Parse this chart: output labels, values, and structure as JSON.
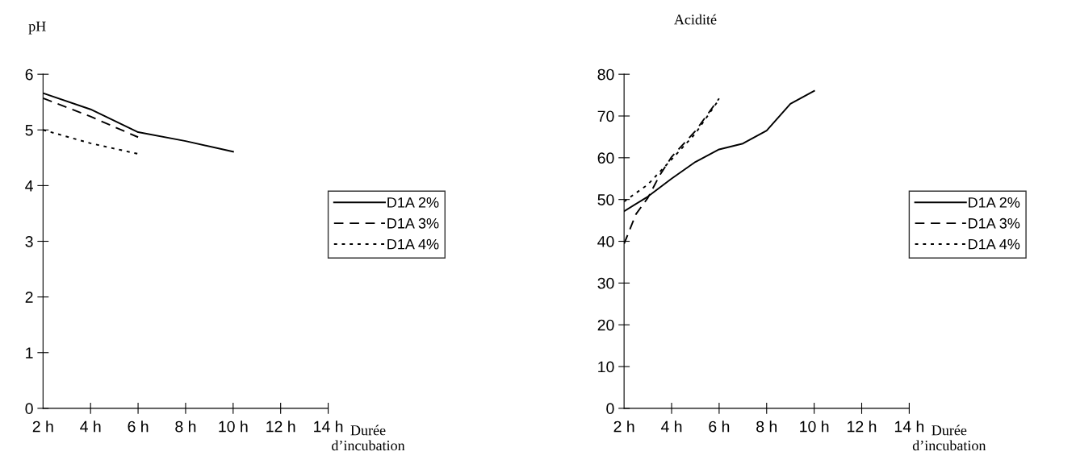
{
  "chart_data": [
    {
      "type": "line",
      "ylabel": "pH",
      "xlabel": "Durée\nd’incubation",
      "xlim": [
        2,
        14
      ],
      "ylim": [
        0,
        6
      ],
      "yticks": [
        0,
        1,
        2,
        3,
        4,
        5,
        6
      ],
      "xticks": [
        {
          "value": 2,
          "label": "2 h"
        },
        {
          "value": 4,
          "label": "4 h"
        },
        {
          "value": 6,
          "label": "6 h"
        },
        {
          "value": 8,
          "label": "8 h"
        },
        {
          "value": 10,
          "label": "10 h"
        },
        {
          "value": 12,
          "label": "12 h"
        },
        {
          "value": 14,
          "label": "14 h"
        }
      ],
      "legend": "right",
      "grid": false,
      "marker": "none",
      "series": [
        {
          "name": "D1A 2%",
          "color": "#000000",
          "line_style": "solid",
          "x": [
            2,
            4,
            6,
            8,
            10
          ],
          "values": [
            5.66,
            5.37,
            4.96,
            4.8,
            4.61
          ]
        },
        {
          "name": "D1A 3%",
          "color": "#000000",
          "line_style": "dashed",
          "x": [
            2,
            4,
            6
          ],
          "values": [
            5.57,
            5.24,
            4.87
          ]
        },
        {
          "name": "D1A 4%",
          "color": "#000000",
          "line_style": "dotted",
          "x": [
            2,
            4,
            6
          ],
          "values": [
            5.0,
            4.76,
            4.57
          ]
        }
      ]
    },
    {
      "type": "line",
      "ylabel": "Acidité",
      "xlabel": "Durée\nd’incubation",
      "xlim": [
        2,
        14
      ],
      "ylim": [
        0,
        80
      ],
      "yticks": [
        0,
        10,
        20,
        30,
        40,
        50,
        60,
        70,
        80
      ],
      "xticks": [
        {
          "value": 2,
          "label": "2 h"
        },
        {
          "value": 4,
          "label": "4 h"
        },
        {
          "value": 6,
          "label": "6 h"
        },
        {
          "value": 8,
          "label": "8 h"
        },
        {
          "value": 10,
          "label": "10 h"
        },
        {
          "value": 12,
          "label": "12 h"
        },
        {
          "value": 14,
          "label": "14 h"
        }
      ],
      "legend": "right",
      "grid": false,
      "marker": "none",
      "series": [
        {
          "name": "D1A 2%",
          "color": "#000000",
          "line_style": "solid",
          "x": [
            2,
            3,
            4,
            5,
            6,
            7,
            8,
            9,
            10
          ],
          "values": [
            47.2,
            50.7,
            55,
            59,
            62,
            63.4,
            66.5,
            72.9,
            76
          ]
        },
        {
          "name": "D1A 3%",
          "color": "#000000",
          "line_style": "dashed",
          "x": [
            2,
            2.5,
            3,
            3.5,
            4,
            5,
            6
          ],
          "values": [
            39.4,
            46.5,
            50.4,
            55.8,
            60.2,
            66.4,
            74.2
          ]
        },
        {
          "name": "D1A 4%",
          "color": "#000000",
          "line_style": "dotted",
          "x": [
            2,
            3,
            4,
            5,
            6
          ],
          "values": [
            49.5,
            53.6,
            59.6,
            65.8,
            74
          ]
        }
      ]
    }
  ]
}
